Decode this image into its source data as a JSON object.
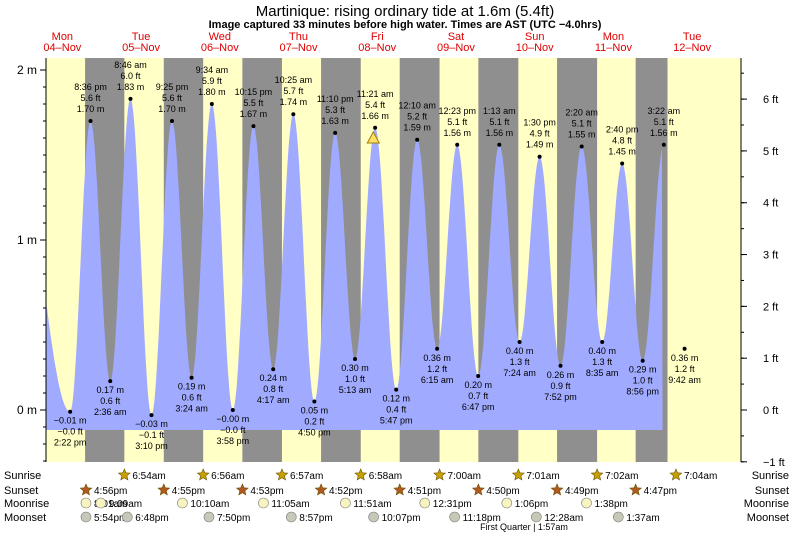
{
  "chart_data": {
    "type": "area",
    "title": "Martinique: rising  ordinary tide at 1.6m (5.4ft)",
    "subtitle": "Image captured 33 minutes before high water. Times are AST (UTC −4.0hrs)",
    "left_axis": {
      "ticks": [
        {
          "v": 0,
          "label": "0 m"
        },
        {
          "v": 1,
          "label": "1 m"
        },
        {
          "v": 2,
          "label": "2 m"
        }
      ]
    },
    "right_axis": {
      "ticks": [
        {
          "v": -1,
          "label": "−1 ft"
        },
        {
          "v": 0,
          "label": "0 ft"
        },
        {
          "v": 1,
          "label": "1 ft"
        },
        {
          "v": 2,
          "label": "2 ft"
        },
        {
          "v": 3,
          "label": "3 ft"
        },
        {
          "v": 4,
          "label": "4 ft"
        },
        {
          "v": 5,
          "label": "5 ft"
        },
        {
          "v": 6,
          "label": "6 ft"
        }
      ]
    },
    "ylim_m": [
      -0.31,
      2.06
    ],
    "xlim_hours": [
      0,
      196.5
    ],
    "days": [
      {
        "dow": "Mon",
        "date": "04–Nov"
      },
      {
        "dow": "Tue",
        "date": "05–Nov"
      },
      {
        "dow": "Wed",
        "date": "06–Nov"
      },
      {
        "dow": "Thu",
        "date": "07–Nov"
      },
      {
        "dow": "Fri",
        "date": "08–Nov"
      },
      {
        "dow": "Sat",
        "date": "09–Nov"
      },
      {
        "dow": "Sun",
        "date": "10–Nov"
      },
      {
        "dow": "Mon",
        "date": "11–Nov"
      },
      {
        "dow": "Tue",
        "date": "12–Nov"
      }
    ],
    "night_bands_hours": [
      [
        18.93,
        30.9
      ],
      [
        42.92,
        54.93
      ],
      [
        66.88,
        78.95
      ],
      [
        90.87,
        102.97
      ],
      [
        114.85,
        127.0
      ],
      [
        138.83,
        151.02
      ],
      [
        162.82,
        175.03
      ],
      [
        186.78,
        196.5
      ]
    ],
    "tides": [
      {
        "t": 14.37,
        "m": -0.01,
        "type": "low",
        "time": "2:22 pm",
        "ft": "−0.0 ft",
        "mlabel": "−0.01 m"
      },
      {
        "t": 20.6,
        "m": 1.7,
        "type": "high",
        "time": "8:36 pm",
        "ft": "5.6 ft",
        "mlabel": "1.70 m"
      },
      {
        "t": 26.6,
        "m": 0.17,
        "type": "low",
        "time": "2:36 am",
        "ft": "0.6 ft",
        "mlabel": "0.17 m"
      },
      {
        "t": 32.77,
        "m": 1.83,
        "type": "high",
        "time": "8:46 am",
        "ft": "6.0 ft",
        "mlabel": "1.83 m"
      },
      {
        "t": 39.17,
        "m": -0.03,
        "type": "low",
        "time": "3:10 pm",
        "ft": "−0.1 ft",
        "mlabel": "−0.03 m"
      },
      {
        "t": 45.42,
        "m": 1.7,
        "type": "high",
        "time": "9:25 pm",
        "ft": "5.6 ft",
        "mlabel": "1.70 m"
      },
      {
        "t": 51.4,
        "m": 0.19,
        "type": "low",
        "time": "3:24 am",
        "ft": "0.6 ft",
        "mlabel": "0.19 m"
      },
      {
        "t": 57.57,
        "m": 1.8,
        "type": "high",
        "time": "9:34 am",
        "ft": "5.9 ft",
        "mlabel": "1.80 m"
      },
      {
        "t": 63.97,
        "m": -0.0,
        "type": "low",
        "time": "3:58 pm",
        "ft": "−0.0 ft",
        "mlabel": "−0.00 m"
      },
      {
        "t": 70.25,
        "m": 1.67,
        "type": "high",
        "time": "10:15 pm",
        "ft": "5.5 ft",
        "mlabel": "1.67 m"
      },
      {
        "t": 76.28,
        "m": 0.24,
        "type": "low",
        "time": "4:17 am",
        "ft": "0.8 ft",
        "mlabel": "0.24 m"
      },
      {
        "t": 82.42,
        "m": 1.74,
        "type": "high",
        "time": "10:25 am",
        "ft": "5.7 ft",
        "mlabel": "1.74 m"
      },
      {
        "t": 88.83,
        "m": 0.05,
        "type": "low",
        "time": "4:50 pm",
        "ft": "0.2 ft",
        "mlabel": "0.05 m"
      },
      {
        "t": 95.17,
        "m": 1.63,
        "type": "high",
        "time": "11:10 pm",
        "ft": "5.3 ft",
        "mlabel": "1.63 m"
      },
      {
        "t": 101.22,
        "m": 0.3,
        "type": "low",
        "time": "5:13 am",
        "ft": "1.0 ft",
        "mlabel": "0.30 m"
      },
      {
        "t": 107.35,
        "m": 1.66,
        "type": "high",
        "time": "11:21 am",
        "ft": "5.4 ft",
        "mlabel": "1.66 m"
      },
      {
        "t": 113.78,
        "m": 0.12,
        "type": "low",
        "time": "5:47 pm",
        "ft": "0.4 ft",
        "mlabel": "0.12 m"
      },
      {
        "t": 120.17,
        "m": 1.59,
        "type": "high",
        "time": "12:10 am",
        "ft": "5.2 ft",
        "mlabel": "1.59 m"
      },
      {
        "t": 126.25,
        "m": 0.36,
        "type": "low",
        "time": "6:15 am",
        "ft": "1.2 ft",
        "mlabel": "0.36 m"
      },
      {
        "t": 132.38,
        "m": 1.56,
        "type": "high",
        "time": "12:23 pm",
        "ft": "5.1 ft",
        "mlabel": "1.56 m"
      },
      {
        "t": 138.78,
        "m": 0.2,
        "type": "low",
        "time": "6:47 pm",
        "ft": "0.7 ft",
        "mlabel": "0.20 m"
      },
      {
        "t": 145.22,
        "m": 1.56,
        "type": "high",
        "time": "1:13 am",
        "ft": "5.1 ft",
        "mlabel": "1.56 m"
      },
      {
        "t": 151.4,
        "m": 0.4,
        "type": "low",
        "time": "7:24 am",
        "ft": "1.3 ft",
        "mlabel": "0.40 m"
      },
      {
        "t": 157.5,
        "m": 1.49,
        "type": "high",
        "time": "1:30 pm",
        "ft": "4.9 ft",
        "mlabel": "1.49 m"
      },
      {
        "t": 163.87,
        "m": 0.26,
        "type": "low",
        "time": "7:52 pm",
        "ft": "0.9 ft",
        "mlabel": "0.26 m"
      },
      {
        "t": 170.33,
        "m": 1.55,
        "type": "high",
        "time": "2:20 am",
        "ft": "5.1 ft",
        "mlabel": "1.55 m"
      },
      {
        "t": 176.58,
        "m": 0.4,
        "type": "low",
        "time": "8:35 am",
        "ft": "1.3 ft",
        "mlabel": "0.40 m"
      },
      {
        "t": 182.67,
        "m": 1.45,
        "type": "high",
        "time": "2:40 pm",
        "ft": "4.8 ft",
        "mlabel": "1.45 m"
      },
      {
        "t": 188.93,
        "m": 0.29,
        "type": "low",
        "time": "8:56 pm",
        "ft": "1.0 ft",
        "mlabel": "0.29 m"
      },
      {
        "t": 195.37,
        "m": 1.56,
        "type": "high",
        "time": "3:22 am",
        "ft": "5.1 ft",
        "mlabel": "1.56 m"
      },
      {
        "t": 201.7,
        "m": 0.36,
        "type": "low",
        "time": "9:42 am",
        "ft": "1.2 ft",
        "mlabel": "0.36 m"
      }
    ],
    "curve_start_hour": 1.8,
    "curve_start_m": 1.15,
    "curve_end_hour": 195.0,
    "current_marker_hour": 106.8,
    "current_marker_m": 1.6,
    "rows": {
      "sunrise": {
        "label": "Sunrise",
        "items": [
          {
            "t": 30.9,
            "text": "6:54am"
          },
          {
            "t": 54.93,
            "text": "6:56am"
          },
          {
            "t": 78.95,
            "text": "6:57am"
          },
          {
            "t": 102.97,
            "text": "6:58am"
          },
          {
            "t": 127.0,
            "text": "7:00am"
          },
          {
            "t": 151.02,
            "text": "7:01am"
          },
          {
            "t": 175.03,
            "text": "7:02am"
          },
          {
            "t": 199.07,
            "text": "7:04am"
          }
        ]
      },
      "sunset": {
        "label": "Sunset",
        "items": [
          {
            "t": 18.93,
            "text": "4:56pm"
          },
          {
            "t": 42.92,
            "text": "4:55pm"
          },
          {
            "t": 66.88,
            "text": "4:53pm"
          },
          {
            "t": 90.87,
            "text": "4:52pm"
          },
          {
            "t": 114.85,
            "text": "4:51pm"
          },
          {
            "t": 138.83,
            "text": "4:50pm"
          },
          {
            "t": 162.82,
            "text": "4:49pm"
          },
          {
            "t": 186.78,
            "text": "4:47pm"
          }
        ]
      },
      "moonrise": {
        "label": "Moonrise",
        "items": [
          {
            "t": -1.0,
            "text": "8:01am"
          },
          {
            "t": 23.7,
            "text": "9:09am"
          },
          {
            "t": 48.6,
            "text": "10:10am"
          },
          {
            "t": 73.3,
            "text": "11:05am"
          },
          {
            "t": 98.3,
            "text": "11:51am"
          },
          {
            "t": 122.5,
            "text": "12:31pm"
          },
          {
            "t": 147.5,
            "text": "1:06pm"
          },
          {
            "t": 171.8,
            "text": "1:38pm"
          }
        ]
      },
      "moonset": {
        "label": "Moonset",
        "items": [
          {
            "t": 7.5,
            "text": "5:54pm"
          },
          {
            "t": 31.8,
            "text": "6:48pm"
          },
          {
            "t": 56.7,
            "text": "7:50pm"
          },
          {
            "t": 81.8,
            "text": "8:57pm"
          },
          {
            "t": 106.9,
            "text": "10:07pm"
          },
          {
            "t": 131.6,
            "text": "11:18pm"
          },
          {
            "t": 156.5,
            "text": "12:28am"
          },
          {
            "t": 181.5,
            "text": "1:37am"
          }
        ]
      }
    },
    "moon_phase_note": "First Quarter | 1:57am",
    "colors": {
      "day": "#ffffc6",
      "night": "#8f8f8f",
      "water": "#a0aaff",
      "date_text": "#e00000",
      "sun": "#c8a000",
      "sunset": "#b05a20",
      "moon": "#f7f4c0"
    }
  }
}
